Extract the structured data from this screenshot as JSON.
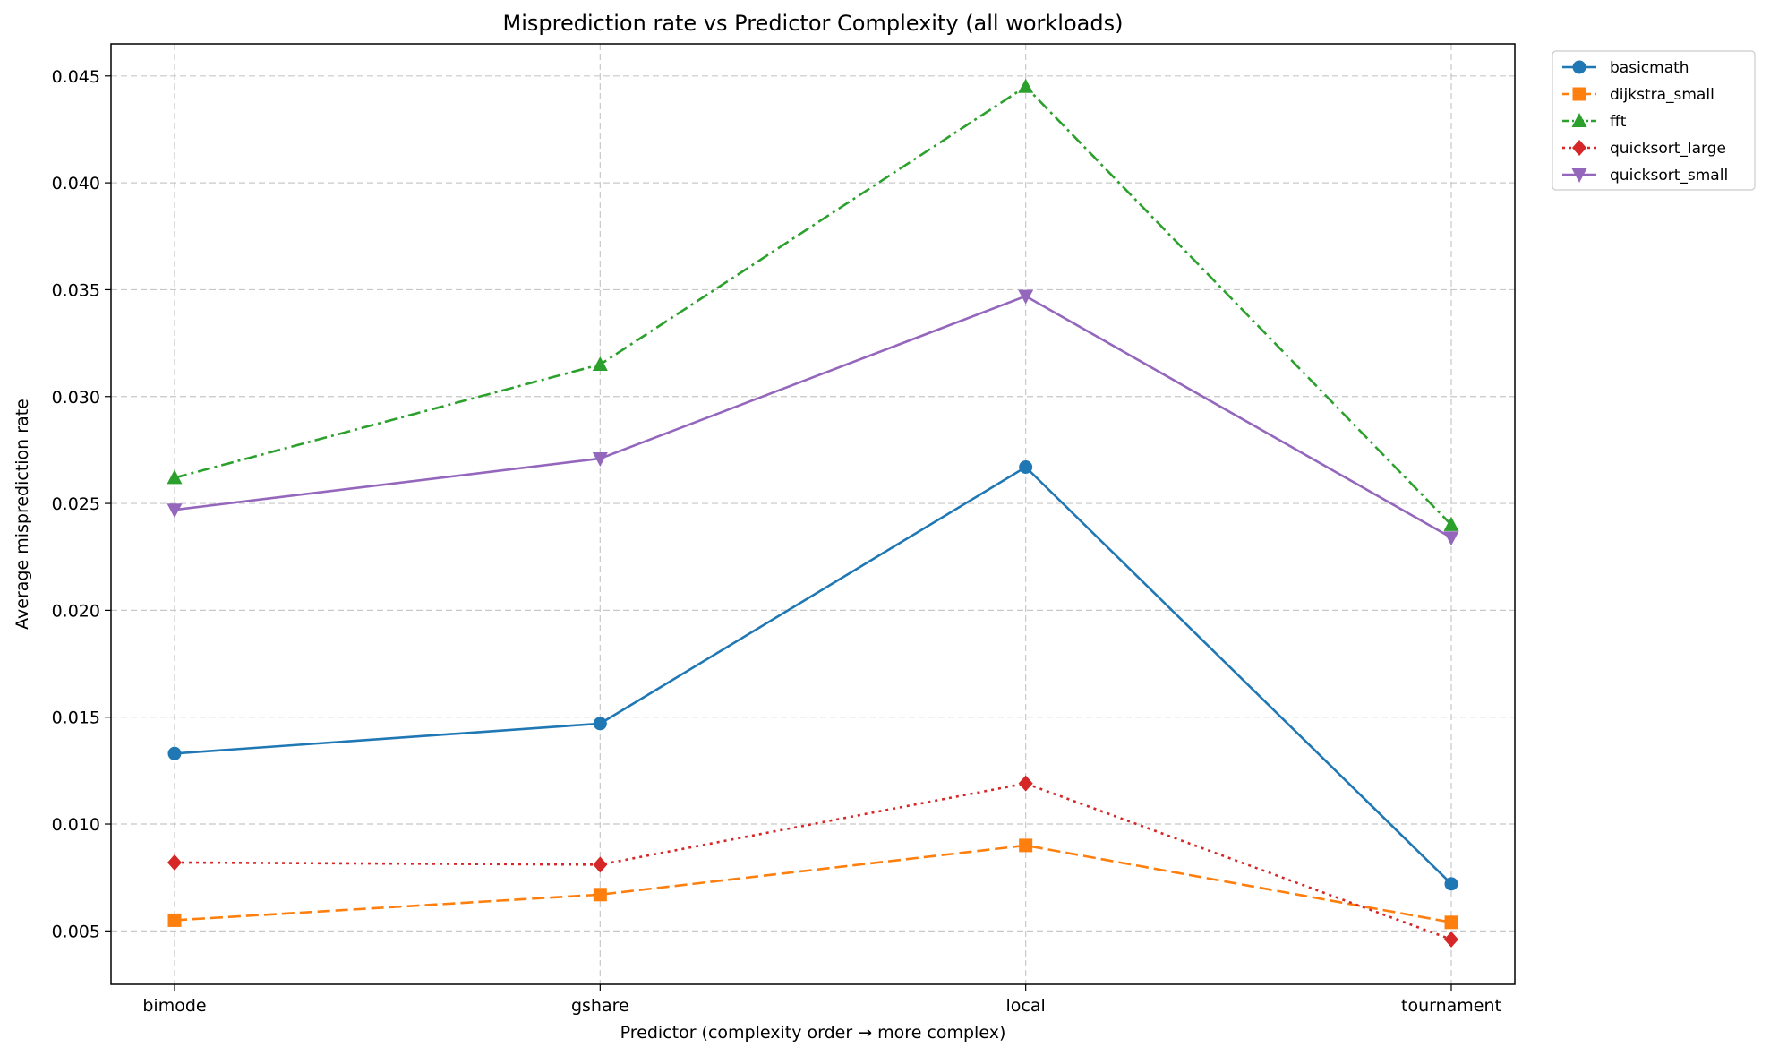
{
  "chart_data": {
    "type": "line",
    "title": "Misprediction rate vs Predictor Complexity (all workloads)",
    "xlabel": "Predictor (complexity order → more complex)",
    "ylabel": "Average misprediction rate",
    "categories": [
      "bimode",
      "gshare",
      "local",
      "tournament"
    ],
    "ylim": [
      0.0025,
      0.0465
    ],
    "yticks": [
      0.005,
      0.01,
      0.015,
      0.02,
      0.025,
      0.03,
      0.035,
      0.04,
      0.045
    ],
    "ytick_labels": [
      "0.005",
      "0.010",
      "0.015",
      "0.020",
      "0.025",
      "0.030",
      "0.035",
      "0.040",
      "0.045"
    ],
    "grid": true,
    "legend_position": "outside-top-right",
    "series": [
      {
        "name": "basicmath",
        "values": [
          0.0133,
          0.0147,
          0.0267,
          0.0072
        ],
        "color": "#1f77b4",
        "marker": "circle",
        "linestyle": "solid"
      },
      {
        "name": "dijkstra_small",
        "values": [
          0.0055,
          0.0067,
          0.009,
          0.0054
        ],
        "color": "#ff7f0e",
        "marker": "square",
        "linestyle": "dashed"
      },
      {
        "name": "fft",
        "values": [
          0.0262,
          0.0315,
          0.0445,
          0.024
        ],
        "color": "#2ca02c",
        "marker": "triangle-up",
        "linestyle": "dashdot"
      },
      {
        "name": "quicksort_large",
        "values": [
          0.0082,
          0.0081,
          0.0119,
          0.0046
        ],
        "color": "#d62728",
        "marker": "diamond",
        "linestyle": "dotted"
      },
      {
        "name": "quicksort_small",
        "values": [
          0.0247,
          0.0271,
          0.0347,
          0.0234
        ],
        "color": "#9467bd",
        "marker": "triangle-down",
        "linestyle": "solid"
      }
    ]
  }
}
